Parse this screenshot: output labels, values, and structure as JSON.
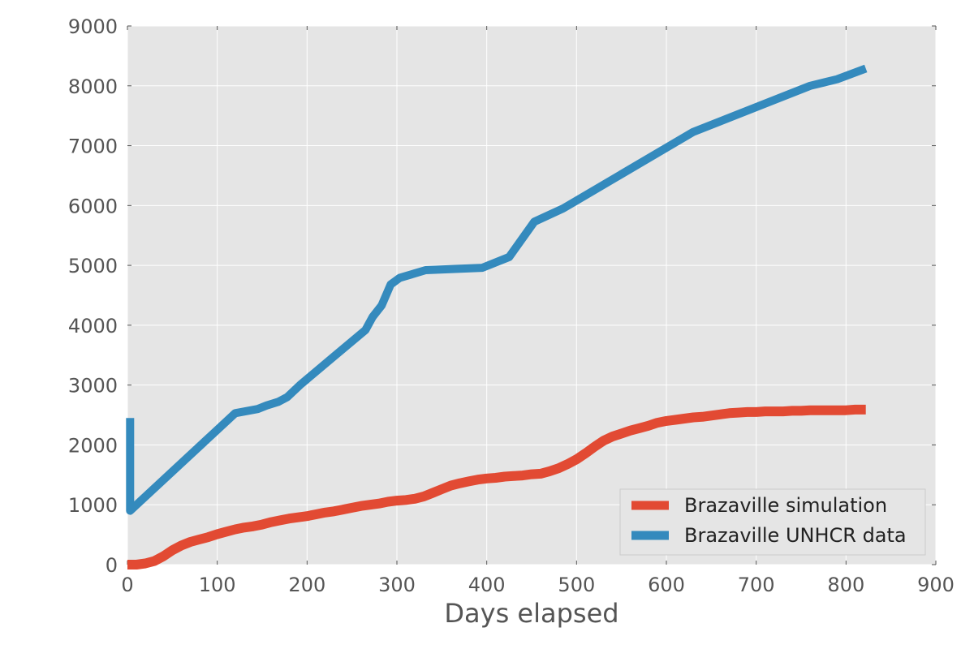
{
  "chart_data": {
    "type": "line",
    "xlabel": "Days elapsed",
    "ylabel": "",
    "xlim": [
      0,
      900
    ],
    "ylim": [
      0,
      9000
    ],
    "xticks": [
      0,
      100,
      200,
      300,
      400,
      500,
      600,
      700,
      800,
      900
    ],
    "yticks": [
      0,
      1000,
      2000,
      3000,
      4000,
      5000,
      6000,
      7000,
      8000,
      9000
    ],
    "grid": true,
    "legend_position": "bottom-right",
    "series": [
      {
        "name": "Brazaville simulation",
        "color": "#E24A33",
        "points": [
          [
            0,
            0
          ],
          [
            10,
            0
          ],
          [
            20,
            20
          ],
          [
            30,
            60
          ],
          [
            40,
            140
          ],
          [
            50,
            240
          ],
          [
            60,
            320
          ],
          [
            70,
            380
          ],
          [
            80,
            420
          ],
          [
            90,
            460
          ],
          [
            100,
            510
          ],
          [
            110,
            550
          ],
          [
            120,
            590
          ],
          [
            130,
            620
          ],
          [
            140,
            640
          ],
          [
            150,
            670
          ],
          [
            160,
            710
          ],
          [
            170,
            740
          ],
          [
            180,
            770
          ],
          [
            190,
            790
          ],
          [
            200,
            810
          ],
          [
            210,
            840
          ],
          [
            220,
            870
          ],
          [
            230,
            890
          ],
          [
            240,
            920
          ],
          [
            250,
            950
          ],
          [
            260,
            980
          ],
          [
            270,
            1000
          ],
          [
            280,
            1020
          ],
          [
            290,
            1050
          ],
          [
            300,
            1070
          ],
          [
            310,
            1080
          ],
          [
            320,
            1100
          ],
          [
            330,
            1140
          ],
          [
            340,
            1200
          ],
          [
            350,
            1260
          ],
          [
            360,
            1320
          ],
          [
            370,
            1360
          ],
          [
            380,
            1390
          ],
          [
            390,
            1420
          ],
          [
            400,
            1440
          ],
          [
            410,
            1450
          ],
          [
            420,
            1470
          ],
          [
            430,
            1480
          ],
          [
            440,
            1490
          ],
          [
            450,
            1510
          ],
          [
            460,
            1520
          ],
          [
            470,
            1560
          ],
          [
            480,
            1610
          ],
          [
            490,
            1680
          ],
          [
            500,
            1760
          ],
          [
            510,
            1860
          ],
          [
            520,
            1970
          ],
          [
            530,
            2070
          ],
          [
            540,
            2140
          ],
          [
            550,
            2190
          ],
          [
            560,
            2240
          ],
          [
            570,
            2280
          ],
          [
            580,
            2320
          ],
          [
            590,
            2370
          ],
          [
            600,
            2400
          ],
          [
            610,
            2420
          ],
          [
            620,
            2440
          ],
          [
            630,
            2460
          ],
          [
            640,
            2470
          ],
          [
            650,
            2490
          ],
          [
            660,
            2510
          ],
          [
            670,
            2530
          ],
          [
            680,
            2540
          ],
          [
            690,
            2550
          ],
          [
            700,
            2550
          ],
          [
            710,
            2560
          ],
          [
            720,
            2560
          ],
          [
            730,
            2560
          ],
          [
            740,
            2570
          ],
          [
            750,
            2570
          ],
          [
            760,
            2580
          ],
          [
            770,
            2580
          ],
          [
            780,
            2580
          ],
          [
            790,
            2580
          ],
          [
            800,
            2580
          ],
          [
            810,
            2590
          ],
          [
            822,
            2590
          ]
        ]
      },
      {
        "name": "Brazaville UNHCR data",
        "color": "#348ABD",
        "points": [
          [
            3,
            2450
          ],
          [
            3,
            900
          ],
          [
            120,
            2530
          ],
          [
            145,
            2600
          ],
          [
            155,
            2660
          ],
          [
            168,
            2720
          ],
          [
            178,
            2800
          ],
          [
            192,
            3000
          ],
          [
            230,
            3480
          ],
          [
            265,
            3920
          ],
          [
            273,
            4140
          ],
          [
            283,
            4330
          ],
          [
            293,
            4680
          ],
          [
            303,
            4790
          ],
          [
            332,
            4920
          ],
          [
            395,
            4960
          ],
          [
            425,
            5140
          ],
          [
            453,
            5730
          ],
          [
            485,
            5950
          ],
          [
            630,
            7230
          ],
          [
            760,
            8000
          ],
          [
            790,
            8110
          ],
          [
            822,
            8290
          ]
        ]
      }
    ]
  }
}
